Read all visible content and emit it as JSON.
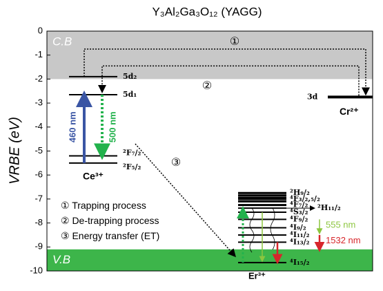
{
  "title": "Y₃Al₂Ga₃O₁₂ (YAGG)",
  "axis": {
    "label": "VRBE (eV)",
    "ylim": [
      -10,
      0
    ],
    "yticks": [
      0,
      -1,
      -2,
      -3,
      -4,
      -5,
      -6,
      -7,
      -8,
      -9,
      -10
    ]
  },
  "bands": {
    "cb": {
      "label": "C.B",
      "top": 0,
      "bottom": -2
    },
    "vb": {
      "label": "V.B",
      "top": -9.1,
      "bottom": -10
    }
  },
  "ce": {
    "label": "Ce³⁺",
    "levels": [
      {
        "label": "5d₂",
        "energy": -1.9
      },
      {
        "label": "5d₁",
        "energy": -2.65
      },
      {
        "label": "²F₇/₂",
        "energy": -5.2
      },
      {
        "label": "²F₅/₂",
        "energy": -5.5
      }
    ],
    "absorption": "460 nm",
    "emission": "500 nm"
  },
  "cr": {
    "label": "Cr²⁺",
    "level": {
      "label": "3d",
      "energy": -2.75
    }
  },
  "er": {
    "label": "Er³⁺",
    "levels": [
      {
        "label": "²H₉/₂",
        "energy": -6.75
      },
      {
        "label": "⁴F₃/₂,₅/₂",
        "energy": -7.0
      },
      {
        "label": "⁴F₇/₂",
        "energy": -7.25
      },
      {
        "label": "⁴S₃/₂",
        "energy": -7.55
      },
      {
        "label": "⁴F₉/₂",
        "energy": -7.85
      },
      {
        "label": "⁴I₉/₂",
        "energy": -8.2
      },
      {
        "label": "⁴I₁₁/₂",
        "energy": -8.5
      },
      {
        "label": "⁴I₁₃/₂",
        "energy": -8.8
      },
      {
        "label": "⁴I₁₅/₂",
        "energy": -9.65
      }
    ],
    "extra_levels": [
      -6.85,
      -6.95,
      -7.1
    ],
    "h11": {
      "label": "²H₁₁/₂",
      "energy": -7.38
    },
    "green": "555 nm",
    "red": "1532 nm"
  },
  "markers": [
    "①",
    "②",
    "③"
  ],
  "legend": [
    "① Trapping process",
    "② De-trapping process",
    "③ Energy transfer (ET)"
  ]
}
